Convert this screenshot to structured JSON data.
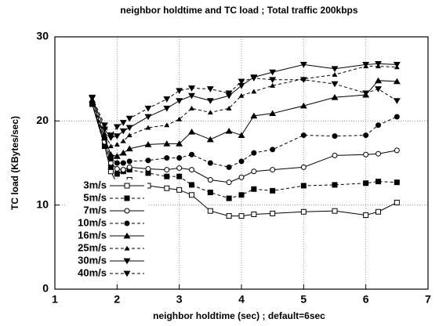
{
  "chart_data": {
    "type": "line",
    "title": "neighbor holdtime and TC load ; Total traffic 200kbps",
    "xlabel": "neighbor holdtime (sec) ; default=6sec",
    "ylabel": "TC load (KBytes/sec)",
    "x": [
      1.6,
      1.8,
      1.9,
      2,
      2.1,
      2.2,
      2.5,
      2.8,
      3,
      3.2,
      3.5,
      3.8,
      4,
      4.2,
      4.5,
      5,
      5.5,
      6,
      6.2,
      6.5
    ],
    "series": [
      {
        "name": "3m/s",
        "color": "#000000",
        "marker": "square-open",
        "dashed": false,
        "values": [
          22,
          17,
          14,
          12.5,
          12.7,
          13,
          12.3,
          12,
          11.8,
          11.2,
          9.3,
          8.7,
          8.7,
          8.9,
          9,
          9.2,
          9.3,
          8.8,
          9.2,
          10.3
        ]
      },
      {
        "name": "5m/s",
        "color": "#000000",
        "marker": "square-filled",
        "dashed": true,
        "values": [
          22,
          17,
          14.5,
          13.7,
          14,
          14.2,
          13.8,
          13.4,
          13.4,
          12.4,
          11.5,
          10.8,
          11.2,
          11.9,
          11.7,
          12.3,
          12.4,
          12.6,
          12.8,
          12.7
        ]
      },
      {
        "name": "7m/s",
        "color": "#000000",
        "marker": "circle-open",
        "dashed": false,
        "values": [
          22,
          17.5,
          15,
          14.3,
          14.2,
          14.5,
          14.3,
          14.2,
          14.4,
          14.2,
          13,
          12.7,
          13.3,
          14,
          14.2,
          14.5,
          15.9,
          16,
          16.1,
          16.5
        ]
      },
      {
        "name": "10m/s",
        "color": "#000000",
        "marker": "circle-filled",
        "dashed": true,
        "values": [
          22,
          18,
          15.5,
          15,
          15,
          15.2,
          15.3,
          15.6,
          15.6,
          16,
          15,
          14.5,
          15.2,
          16.2,
          16.6,
          18.3,
          18.2,
          18.3,
          19.5,
          20.5
        ]
      },
      {
        "name": "16m/s",
        "color": "#000000",
        "marker": "triangle-filled",
        "dashed": false,
        "values": [
          22.5,
          18,
          16,
          15.8,
          16.2,
          16.7,
          17.2,
          17.3,
          17.3,
          18.7,
          17.8,
          18.8,
          18.3,
          20.6,
          20.9,
          21.8,
          22.8,
          23.1,
          24.8,
          24.7
        ]
      },
      {
        "name": "25m/s",
        "color": "#000000",
        "marker": "triangle-small",
        "dashed": true,
        "values": [
          22.5,
          18.5,
          17,
          17.2,
          17.6,
          18.3,
          19.2,
          19.5,
          20.2,
          21.5,
          21,
          21.5,
          23,
          23.5,
          24.2,
          25,
          25.5,
          26.5,
          26.5,
          26.4
        ]
      },
      {
        "name": "30m/s",
        "color": "#000000",
        "marker": "triangle-down",
        "dashed": false,
        "values": [
          22.7,
          19,
          18,
          18.2,
          18.8,
          19.2,
          20.5,
          21.5,
          22.4,
          23,
          22.4,
          23,
          24.2,
          25.2,
          25.8,
          26.7,
          26.2,
          26.7,
          26.8,
          26.7
        ]
      },
      {
        "name": "40m/s",
        "color": "#000000",
        "marker": "triangle-down",
        "dashed": true,
        "values": [
          22.8,
          19.5,
          18.3,
          19.3,
          19.8,
          20.3,
          21.5,
          22.6,
          23.6,
          23.9,
          23.8,
          23.3,
          24.7,
          25.1,
          24.9,
          24.9,
          24.4,
          23.3,
          23.8,
          22.4
        ]
      }
    ],
    "xlim": [
      1,
      7
    ],
    "xticks": [
      1,
      2,
      3,
      4,
      5,
      6,
      7
    ],
    "ylim": [
      0,
      30
    ],
    "yticks": [
      0,
      10,
      20,
      30
    ],
    "grid": true,
    "legend": "lower left"
  }
}
